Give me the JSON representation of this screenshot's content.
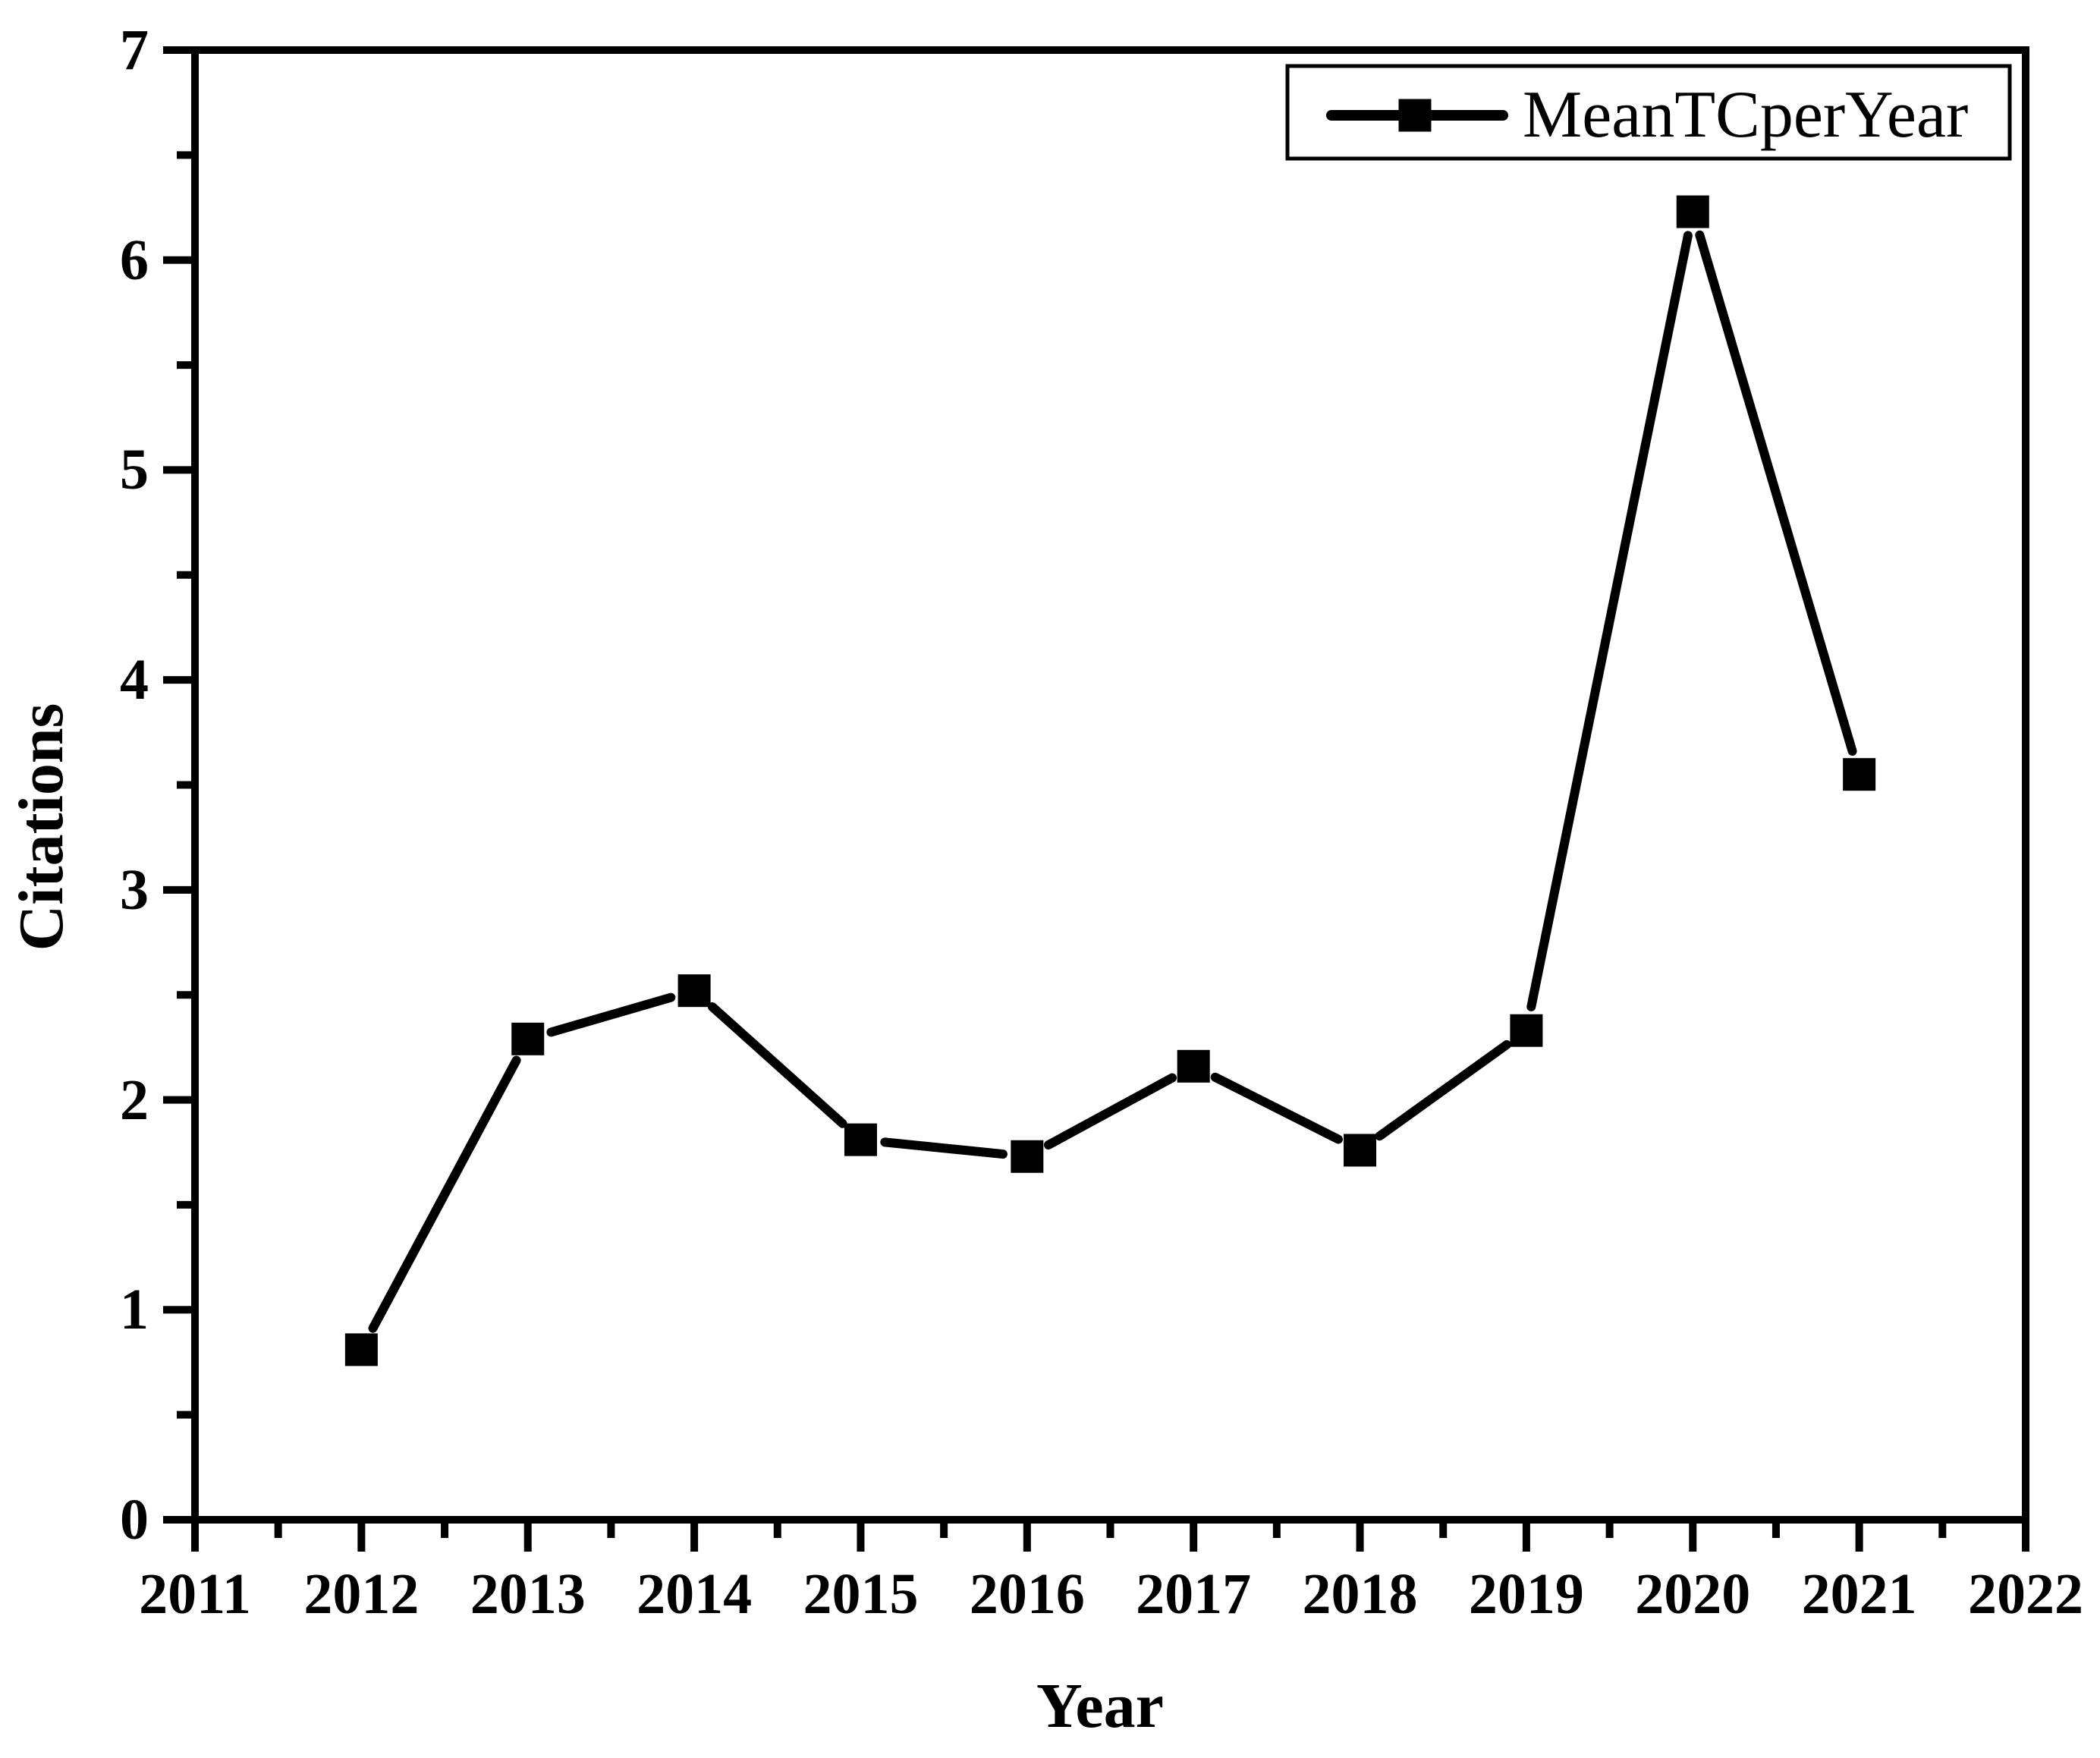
{
  "chart_data": {
    "type": "line",
    "title": "",
    "xlabel": "Year",
    "ylabel": "Citations",
    "legend": {
      "label": "MeanTCperYear",
      "position": "top-right",
      "marker": "filled-square"
    },
    "x": [
      2012,
      2013,
      2014,
      2015,
      2016,
      2017,
      2018,
      2019,
      2020,
      2021
    ],
    "series": [
      {
        "name": "MeanTCperYear",
        "values": [
          0.81,
          2.29,
          2.52,
          1.81,
          1.73,
          2.16,
          1.76,
          2.33,
          6.23,
          3.55
        ]
      }
    ],
    "xlim": [
      2011,
      2022
    ],
    "ylim": [
      0,
      7
    ],
    "x_ticks": {
      "major": [
        "2011",
        "2012",
        "2013",
        "2014",
        "2015",
        "2016",
        "2017",
        "2018",
        "2019",
        "2020",
        "2021",
        "2022"
      ],
      "major_values": [
        2011,
        2012,
        2013,
        2014,
        2015,
        2016,
        2017,
        2018,
        2019,
        2020,
        2021,
        2022
      ],
      "minor_values": [
        2011.5,
        2012.5,
        2013.5,
        2014.5,
        2015.5,
        2016.5,
        2017.5,
        2018.5,
        2019.5,
        2020.5,
        2021.5
      ]
    },
    "y_ticks": {
      "major": [
        "0",
        "1",
        "2",
        "3",
        "4",
        "5",
        "6",
        "7"
      ],
      "major_values": [
        0,
        1,
        2,
        3,
        4,
        5,
        6,
        7
      ],
      "minor_values": [
        0.5,
        1.5,
        2.5,
        3.5,
        4.5,
        5.5,
        6.5
      ]
    },
    "grid": false,
    "line_style": "solid-with-square-markers",
    "colors": {
      "foreground": "#000000",
      "background": "#ffffff",
      "series": "#000000"
    }
  }
}
